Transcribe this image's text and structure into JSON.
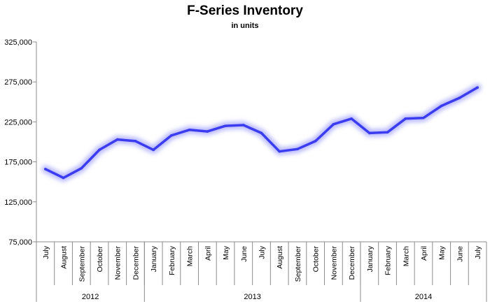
{
  "chart_data": {
    "type": "line",
    "title": "F-Series Inventory",
    "subtitle": "in units",
    "xlabel": "",
    "ylabel": "",
    "ylim": [
      75000,
      325000
    ],
    "y_ticks": [
      "325,000",
      "275,000",
      "225,000",
      "175,000",
      "125,000",
      "75,000"
    ],
    "y_tick_values": [
      325000,
      275000,
      225000,
      175000,
      125000,
      75000
    ],
    "grid": false,
    "legend": "none",
    "categories": [
      "July",
      "August",
      "September",
      "October",
      "November",
      "December",
      "January",
      "February",
      "March",
      "April",
      "May",
      "June",
      "July",
      "August",
      "September",
      "October",
      "November",
      "December",
      "January",
      "February",
      "March",
      "April",
      "May",
      "June",
      "July"
    ],
    "years": [
      {
        "label": "2012",
        "count": 6
      },
      {
        "label": "2013",
        "count": 12
      },
      {
        "label": "2014",
        "count": 7
      }
    ],
    "series": [
      {
        "color": "#3b3bf0",
        "values": [
          166000,
          155000,
          167000,
          190000,
          203000,
          201000,
          190000,
          208000,
          215000,
          213000,
          220000,
          221000,
          211000,
          188000,
          191000,
          201000,
          222000,
          229000,
          211000,
          212000,
          229000,
          230000,
          245000,
          255000,
          268000
        ]
      }
    ]
  }
}
